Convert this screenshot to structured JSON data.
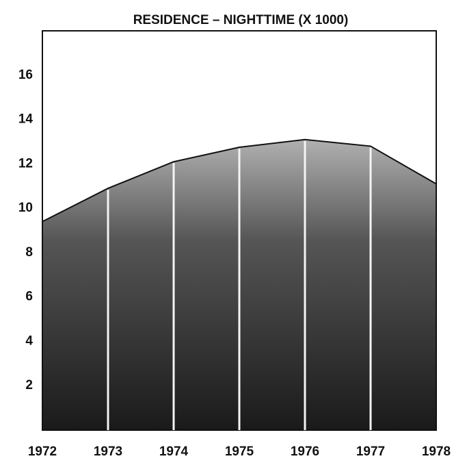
{
  "chart_data": {
    "type": "area",
    "title": "RESIDENCE – NIGHTTIME (X 1000)",
    "x": [
      1972,
      1973,
      1974,
      1975,
      1976,
      1977,
      1978
    ],
    "values": [
      9.4,
      10.9,
      12.1,
      12.75,
      13.1,
      12.8,
      11.1
    ],
    "color": "#2a2a2a",
    "xlim": [
      1972,
      1978
    ],
    "xticks": [
      1972,
      1973,
      1974,
      1975,
      1976,
      1977,
      1978
    ],
    "ylim": [
      0,
      18
    ],
    "yticks": [
      2,
      4,
      6,
      8,
      10,
      12,
      14,
      16
    ]
  }
}
